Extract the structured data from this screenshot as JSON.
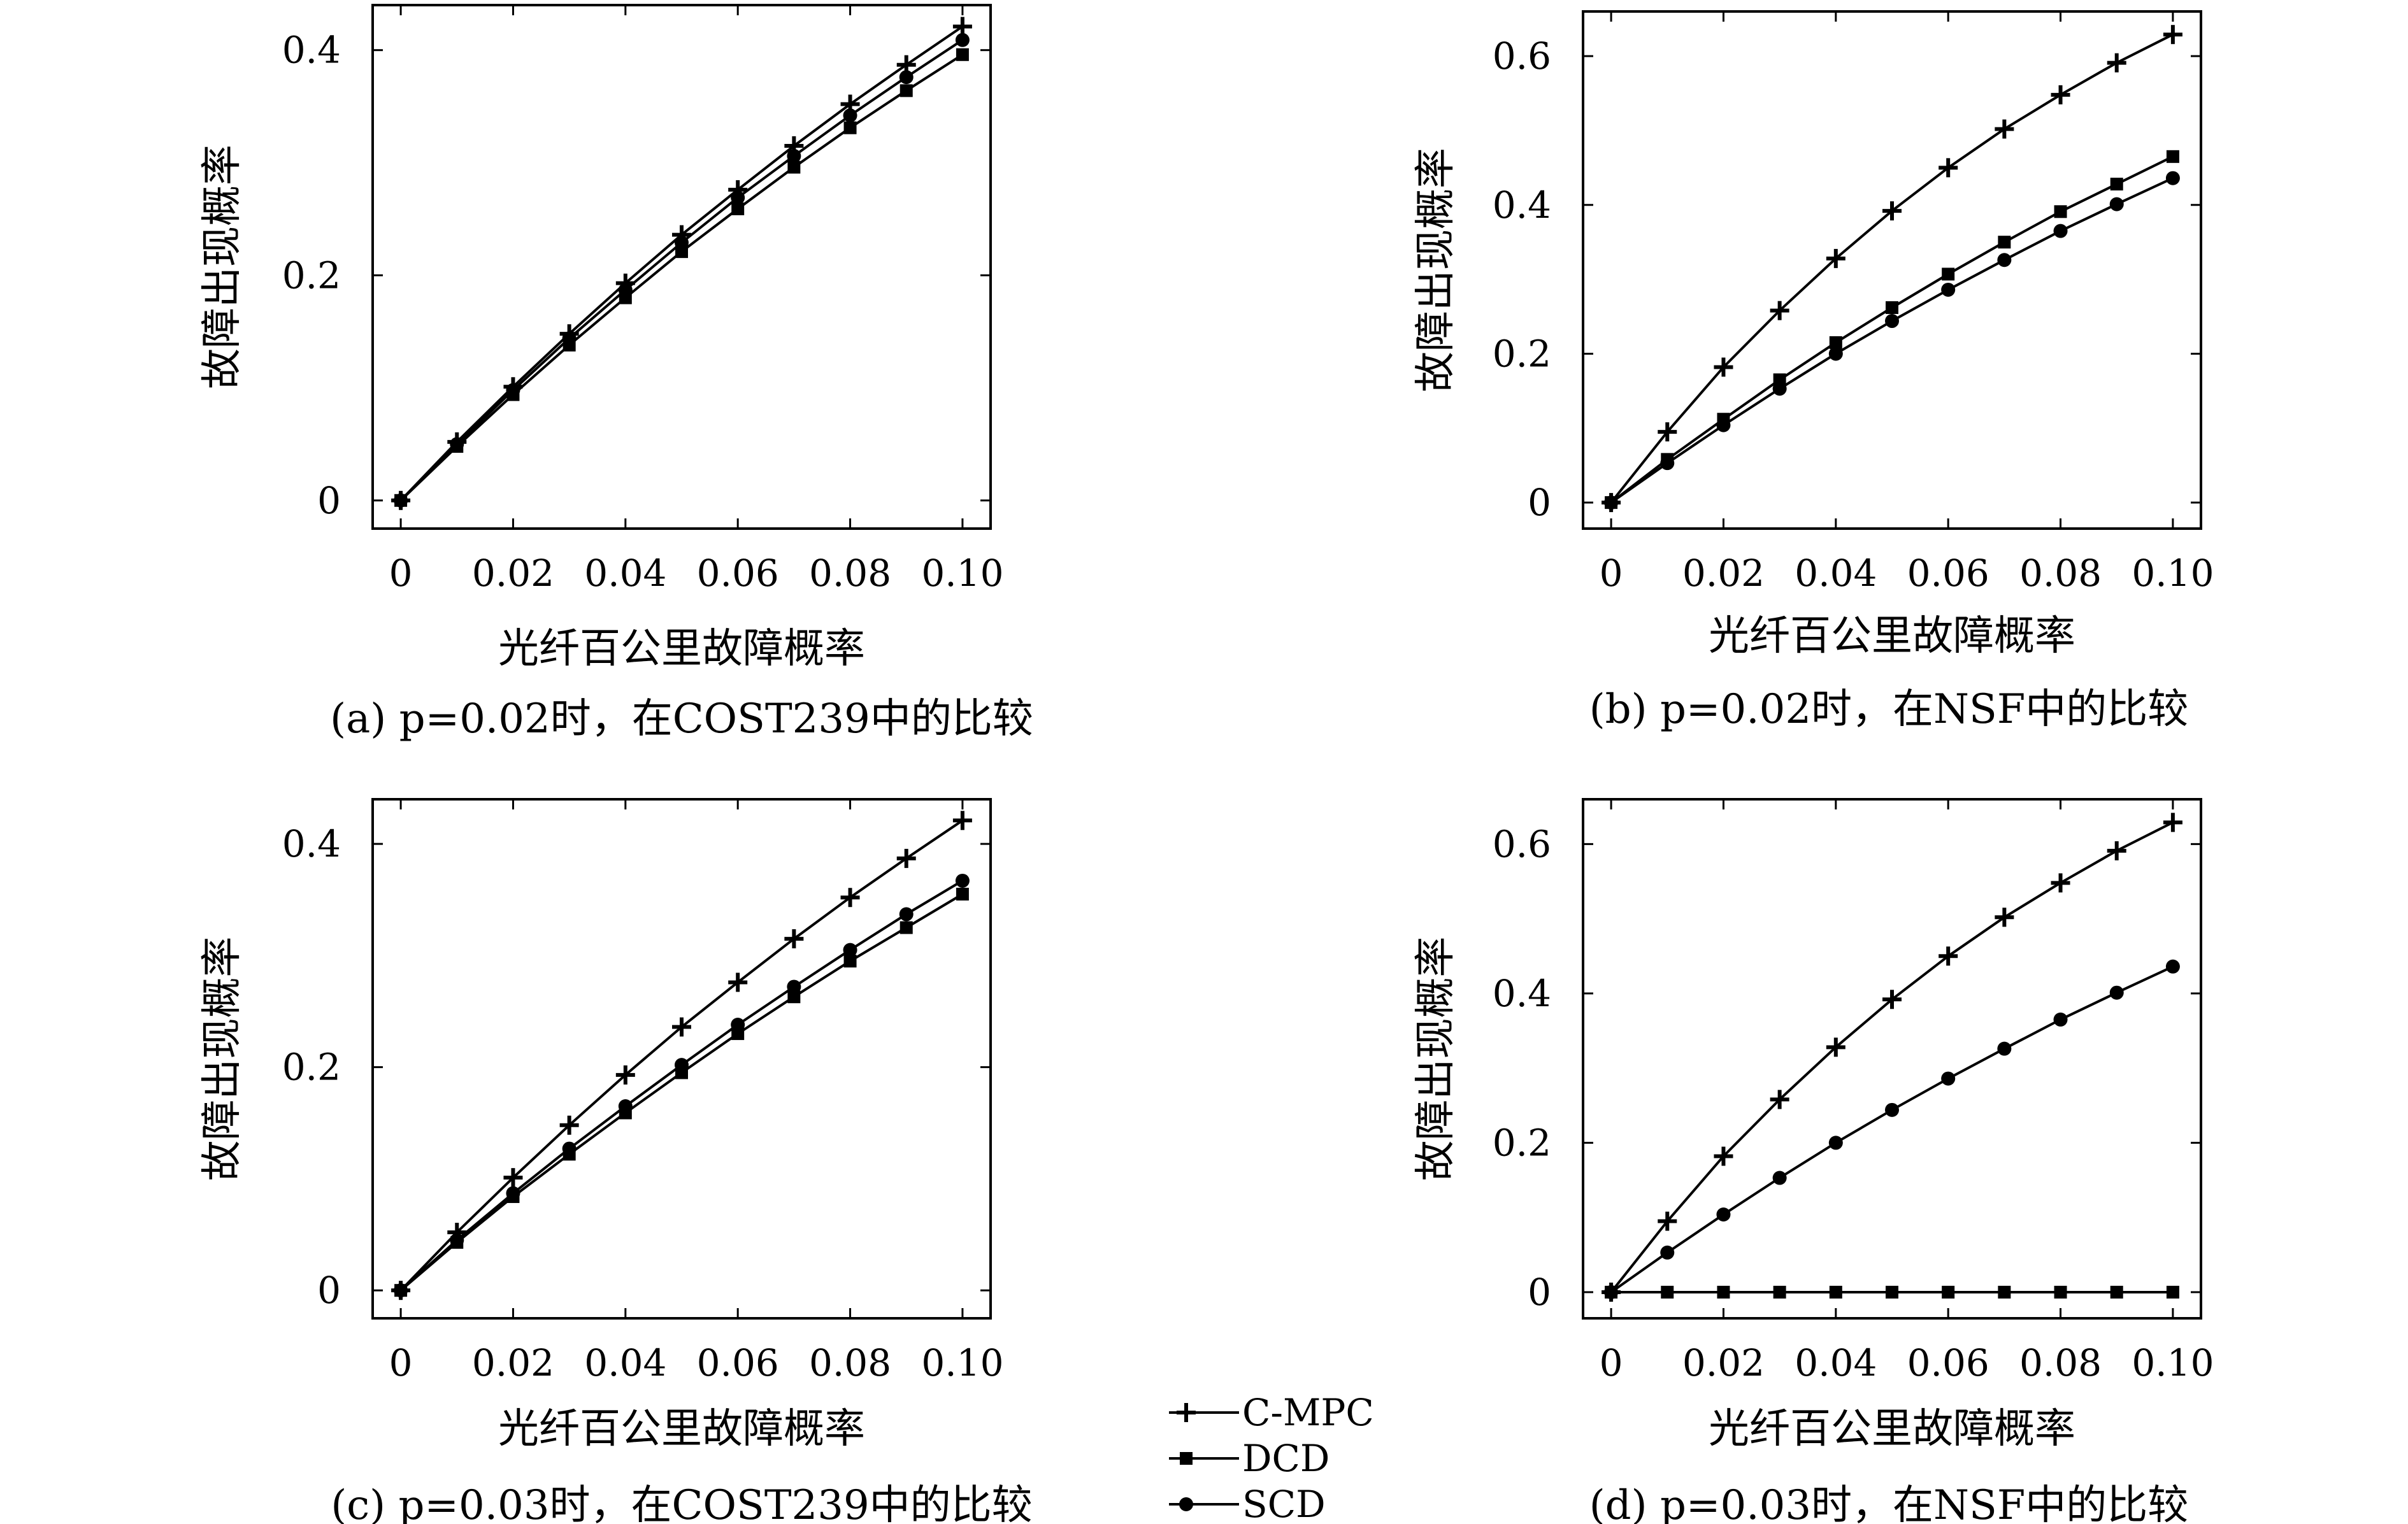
{
  "legend": {
    "items": [
      {
        "name": "C-MPC",
        "marker": "plus"
      },
      {
        "name": "DCD",
        "marker": "square"
      },
      {
        "name": "SCD",
        "marker": "circle"
      }
    ]
  },
  "chart_data": [
    {
      "type": "line",
      "caption": "(a) p=0.02时，在COST239中的比较",
      "xlabel": "光纤百公里故障概率",
      "ylabel": "故障出现概率",
      "xlim": [
        -0.005,
        0.105
      ],
      "ylim": [
        -0.025,
        0.44
      ],
      "xticks": [
        {
          "v": 0,
          "label": "0"
        },
        {
          "v": 0.02,
          "label": "0.02"
        },
        {
          "v": 0.04,
          "label": "0.04"
        },
        {
          "v": 0.06,
          "label": "0.06"
        },
        {
          "v": 0.08,
          "label": "0.08"
        },
        {
          "v": 0.1,
          "label": "0.10"
        }
      ],
      "yticks": [
        {
          "v": 0,
          "label": "0"
        },
        {
          "v": 0.2,
          "label": "0.2"
        },
        {
          "v": 0.4,
          "label": "0.4"
        }
      ],
      "x": [
        0,
        0.01,
        0.02,
        0.03,
        0.04,
        0.05,
        0.06,
        0.07,
        0.08,
        0.09,
        0.1
      ],
      "series": [
        {
          "name": "C-MPC",
          "marker": "plus",
          "values": [
            0,
            0.052,
            0.101,
            0.148,
            0.193,
            0.236,
            0.276,
            0.315,
            0.352,
            0.387,
            0.421
          ]
        },
        {
          "name": "DCD",
          "marker": "square",
          "values": [
            0,
            0.048,
            0.094,
            0.138,
            0.18,
            0.221,
            0.259,
            0.296,
            0.331,
            0.364,
            0.396
          ]
        },
        {
          "name": "SCD",
          "marker": "circle",
          "values": [
            0,
            0.05,
            0.098,
            0.144,
            0.187,
            0.229,
            0.269,
            0.306,
            0.342,
            0.376,
            0.409
          ]
        }
      ]
    },
    {
      "type": "line",
      "caption": "(b) p=0.02时，在NSF中的比较",
      "xlabel": "光纤百公里故障概率",
      "ylabel": "故障出现概率",
      "xlim": [
        -0.005,
        0.105
      ],
      "ylim": [
        -0.035,
        0.66
      ],
      "xticks": [
        {
          "v": 0,
          "label": "0"
        },
        {
          "v": 0.02,
          "label": "0.02"
        },
        {
          "v": 0.04,
          "label": "0.04"
        },
        {
          "v": 0.06,
          "label": "0.06"
        },
        {
          "v": 0.08,
          "label": "0.08"
        },
        {
          "v": 0.1,
          "label": "0.10"
        }
      ],
      "yticks": [
        {
          "v": 0,
          "label": "0"
        },
        {
          "v": 0.2,
          "label": "0.2"
        },
        {
          "v": 0.4,
          "label": "0.4"
        },
        {
          "v": 0.6,
          "label": "0.6"
        }
      ],
      "x": [
        0,
        0.01,
        0.02,
        0.03,
        0.04,
        0.05,
        0.06,
        0.07,
        0.08,
        0.09,
        0.1
      ],
      "series": [
        {
          "name": "C-MPC",
          "marker": "plus",
          "values": [
            0,
            0.095,
            0.182,
            0.258,
            0.328,
            0.392,
            0.45,
            0.502,
            0.548,
            0.591,
            0.629
          ]
        },
        {
          "name": "DCD",
          "marker": "square",
          "values": [
            0,
            0.058,
            0.112,
            0.165,
            0.215,
            0.262,
            0.307,
            0.35,
            0.391,
            0.428,
            0.465
          ]
        },
        {
          "name": "SCD",
          "marker": "circle",
          "values": [
            0,
            0.053,
            0.104,
            0.153,
            0.2,
            0.244,
            0.286,
            0.326,
            0.365,
            0.401,
            0.436
          ]
        }
      ]
    },
    {
      "type": "line",
      "caption": "(c) p=0.03时，在COST239中的比较",
      "xlabel": "光纤百公里故障概率",
      "ylabel": "故障出现概率",
      "xlim": [
        -0.005,
        0.105
      ],
      "ylim": [
        -0.025,
        0.44
      ],
      "xticks": [
        {
          "v": 0,
          "label": "0"
        },
        {
          "v": 0.02,
          "label": "0.02"
        },
        {
          "v": 0.04,
          "label": "0.04"
        },
        {
          "v": 0.06,
          "label": "0.06"
        },
        {
          "v": 0.08,
          "label": "0.08"
        },
        {
          "v": 0.1,
          "label": "0.10"
        }
      ],
      "yticks": [
        {
          "v": 0,
          "label": "0"
        },
        {
          "v": 0.2,
          "label": "0.2"
        },
        {
          "v": 0.4,
          "label": "0.4"
        }
      ],
      "x": [
        0,
        0.01,
        0.02,
        0.03,
        0.04,
        0.05,
        0.06,
        0.07,
        0.08,
        0.09,
        0.1
      ],
      "series": [
        {
          "name": "C-MPC",
          "marker": "plus",
          "values": [
            0,
            0.052,
            0.101,
            0.148,
            0.193,
            0.236,
            0.276,
            0.315,
            0.352,
            0.387,
            0.421
          ]
        },
        {
          "name": "DCD",
          "marker": "square",
          "values": [
            0,
            0.043,
            0.084,
            0.122,
            0.159,
            0.195,
            0.23,
            0.263,
            0.295,
            0.325,
            0.355
          ]
        },
        {
          "name": "SCD",
          "marker": "circle",
          "values": [
            0,
            0.045,
            0.087,
            0.127,
            0.165,
            0.202,
            0.238,
            0.272,
            0.305,
            0.337,
            0.367
          ]
        }
      ]
    },
    {
      "type": "line",
      "caption": "(d) p=0.03时，在NSF中的比较",
      "xlabel": "光纤百公里故障概率",
      "ylabel": "故障出现概率",
      "xlim": [
        -0.005,
        0.105
      ],
      "ylim": [
        -0.035,
        0.66
      ],
      "xticks": [
        {
          "v": 0,
          "label": "0"
        },
        {
          "v": 0.02,
          "label": "0.02"
        },
        {
          "v": 0.04,
          "label": "0.04"
        },
        {
          "v": 0.06,
          "label": "0.06"
        },
        {
          "v": 0.08,
          "label": "0.08"
        },
        {
          "v": 0.1,
          "label": "0.10"
        }
      ],
      "yticks": [
        {
          "v": 0,
          "label": "0"
        },
        {
          "v": 0.2,
          "label": "0.2"
        },
        {
          "v": 0.4,
          "label": "0.4"
        },
        {
          "v": 0.6,
          "label": "0.6"
        }
      ],
      "x": [
        0,
        0.01,
        0.02,
        0.03,
        0.04,
        0.05,
        0.06,
        0.07,
        0.08,
        0.09,
        0.1
      ],
      "series": [
        {
          "name": "C-MPC",
          "marker": "plus",
          "values": [
            0,
            0.095,
            0.182,
            0.258,
            0.328,
            0.392,
            0.45,
            0.502,
            0.548,
            0.591,
            0.629
          ]
        },
        {
          "name": "DCD",
          "marker": "square",
          "values": [
            0,
            0,
            0,
            0,
            0,
            0,
            0,
            0,
            0,
            0,
            0
          ]
        },
        {
          "name": "SCD",
          "marker": "circle",
          "values": [
            0,
            0.053,
            0.104,
            0.153,
            0.2,
            0.244,
            0.286,
            0.326,
            0.365,
            0.401,
            0.436
          ]
        }
      ]
    }
  ]
}
